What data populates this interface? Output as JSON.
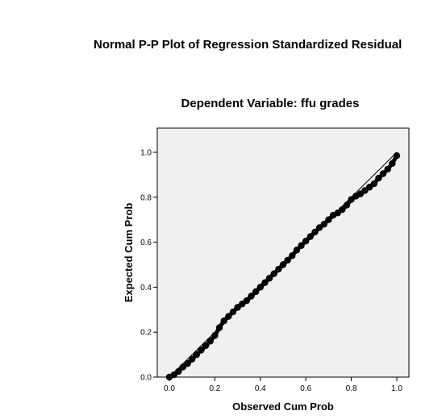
{
  "chart_data": {
    "type": "scatter",
    "title": "Normal P-P Plot of Regression Standardized Residual",
    "subtitle": "Dependent Variable: ffu grades",
    "xlabel": "Observed Cum Prob",
    "ylabel": "Expected Cum Prob",
    "xlim": [
      0,
      1
    ],
    "ylim": [
      0,
      1
    ],
    "x_ticks": [
      "0.0",
      "0.2",
      "0.4",
      "0.6",
      "0.8",
      "1.0"
    ],
    "y_ticks": [
      "0.0",
      "0.2",
      "0.4",
      "0.6",
      "0.8",
      "1.0"
    ],
    "grid": false,
    "reference_line": [
      [
        0,
        0
      ],
      [
        1,
        1
      ]
    ],
    "series": [
      {
        "points": [
          [
            0.0,
            0.0
          ],
          [
            0.02,
            0.01
          ],
          [
            0.04,
            0.025
          ],
          [
            0.06,
            0.045
          ],
          [
            0.08,
            0.06
          ],
          [
            0.1,
            0.08
          ],
          [
            0.12,
            0.1
          ],
          [
            0.14,
            0.12
          ],
          [
            0.16,
            0.14
          ],
          [
            0.18,
            0.16
          ],
          [
            0.2,
            0.185
          ],
          [
            0.22,
            0.22
          ],
          [
            0.24,
            0.25
          ],
          [
            0.26,
            0.27
          ],
          [
            0.28,
            0.29
          ],
          [
            0.3,
            0.31
          ],
          [
            0.32,
            0.325
          ],
          [
            0.34,
            0.34
          ],
          [
            0.36,
            0.36
          ],
          [
            0.38,
            0.38
          ],
          [
            0.4,
            0.4
          ],
          [
            0.42,
            0.42
          ],
          [
            0.44,
            0.44
          ],
          [
            0.46,
            0.46
          ],
          [
            0.48,
            0.48
          ],
          [
            0.5,
            0.5
          ],
          [
            0.52,
            0.52
          ],
          [
            0.54,
            0.54
          ],
          [
            0.56,
            0.565
          ],
          [
            0.58,
            0.585
          ],
          [
            0.6,
            0.605
          ],
          [
            0.62,
            0.625
          ],
          [
            0.64,
            0.645
          ],
          [
            0.66,
            0.665
          ],
          [
            0.68,
            0.68
          ],
          [
            0.7,
            0.7
          ],
          [
            0.72,
            0.72
          ],
          [
            0.74,
            0.73
          ],
          [
            0.76,
            0.745
          ],
          [
            0.78,
            0.765
          ],
          [
            0.8,
            0.79
          ],
          [
            0.82,
            0.805
          ],
          [
            0.84,
            0.815
          ],
          [
            0.86,
            0.83
          ],
          [
            0.88,
            0.845
          ],
          [
            0.9,
            0.86
          ],
          [
            0.92,
            0.885
          ],
          [
            0.94,
            0.905
          ],
          [
            0.96,
            0.925
          ],
          [
            0.98,
            0.95
          ],
          [
            1.0,
            0.985
          ]
        ]
      }
    ],
    "colors": {
      "plot_background": "#f0f0f0",
      "marker": "#000000",
      "reference_line": "#000000"
    }
  }
}
